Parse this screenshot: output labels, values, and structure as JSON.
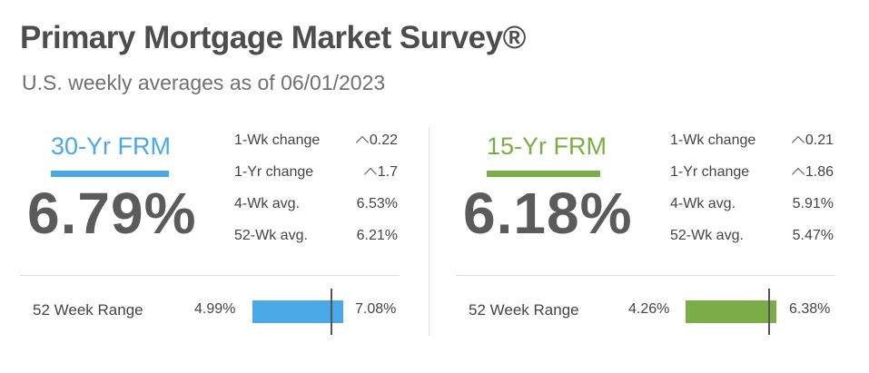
{
  "header": {
    "title": "Primary Mortgage Market Survey®",
    "subtitle": "U.S. weekly averages as of 06/01/2023"
  },
  "colors": {
    "frm30": "#4ba8e6",
    "frm15": "#7aad45"
  },
  "panels": [
    {
      "label": "30-Yr FRM",
      "rate": "6.79%",
      "stats": {
        "wk_change_label": "1-Wk change",
        "wk_change_value": "0.22",
        "wk_change_icon": "caret-up-icon",
        "yr_change_label": "1-Yr change",
        "yr_change_value": "1.7",
        "yr_change_icon": "caret-up-icon",
        "avg4_label": "4-Wk avg.",
        "avg4_value": "6.53%",
        "avg52_label": "52-Wk avg.",
        "avg52_value": "6.21%"
      },
      "range": {
        "label": "52 Week Range",
        "min": "4.99%",
        "max": "7.08%",
        "min_num": 4.99,
        "max_num": 7.08,
        "current_num": 6.79
      }
    },
    {
      "label": "15-Yr FRM",
      "rate": "6.18%",
      "stats": {
        "wk_change_label": "1-Wk change",
        "wk_change_value": "0.21",
        "wk_change_icon": "caret-up-icon",
        "yr_change_label": "1-Yr change",
        "yr_change_value": "1.86",
        "yr_change_icon": "caret-up-icon",
        "avg4_label": "4-Wk avg.",
        "avg4_value": "5.91%",
        "avg52_label": "52-Wk avg.",
        "avg52_value": "5.47%"
      },
      "range": {
        "label": "52 Week Range",
        "min": "4.26%",
        "max": "6.38%",
        "min_num": 4.26,
        "max_num": 6.38,
        "current_num": 6.18
      }
    }
  ]
}
